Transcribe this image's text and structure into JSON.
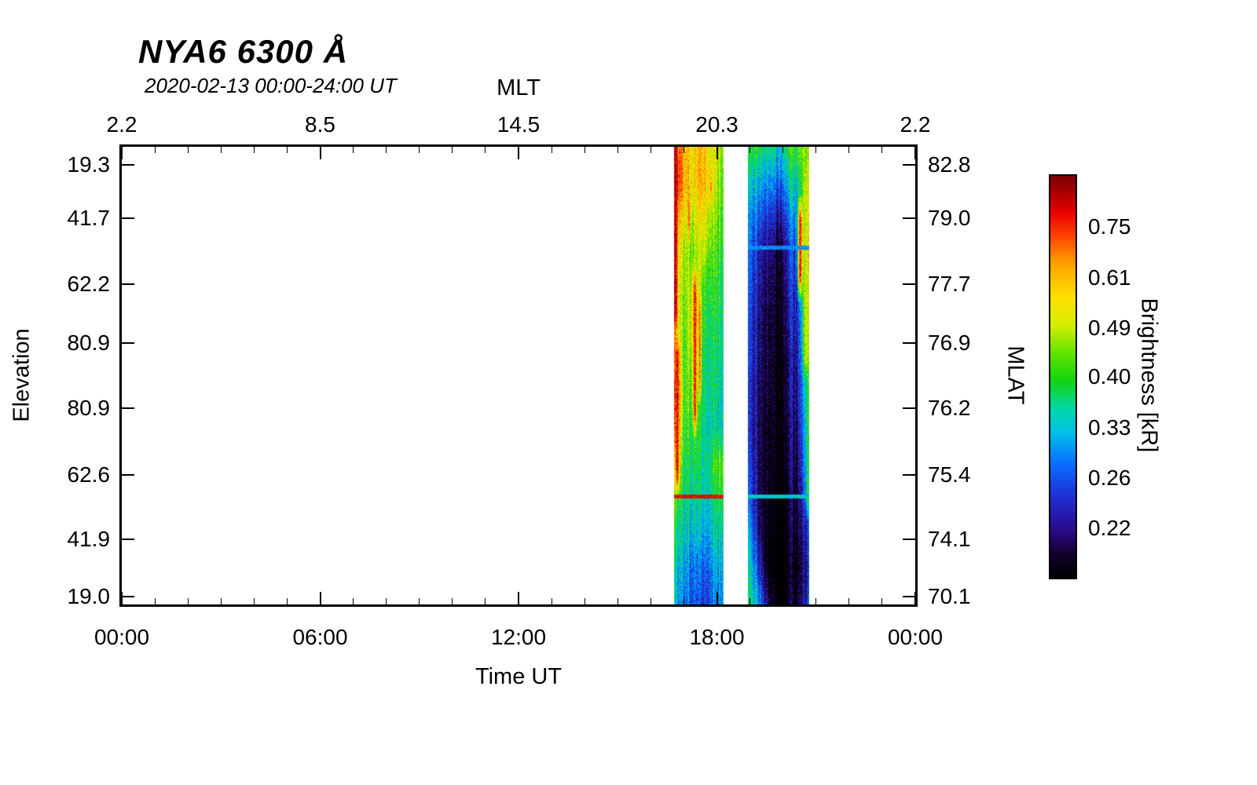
{
  "chart_data": {
    "type": "heatmap",
    "title": "NYA6 6300 Å",
    "subtitle": "2020-02-13 00:00-24:00 UT",
    "background": "#ffffff",
    "frame_color": "#000000",
    "time_range_hours": [
      0,
      24
    ],
    "axes": {
      "top": {
        "label": "MLT",
        "ticks": [
          {
            "label": "2.2",
            "pos": 0.0
          },
          {
            "label": "8.5",
            "pos": 0.25
          },
          {
            "label": "14.5",
            "pos": 0.5
          },
          {
            "label": "20.3",
            "pos": 0.75
          },
          {
            "label": "2.2",
            "pos": 1.0
          }
        ]
      },
      "bottom": {
        "label": "Time UT",
        "ticks": [
          {
            "label": "00:00",
            "pos": 0.0
          },
          {
            "label": "06:00",
            "pos": 0.25
          },
          {
            "label": "12:00",
            "pos": 0.5
          },
          {
            "label": "18:00",
            "pos": 0.75
          },
          {
            "label": "00:00",
            "pos": 1.0
          }
        ]
      },
      "left": {
        "label": "Elevation",
        "ticks": [
          {
            "label": "19.3",
            "pos": 0.04
          },
          {
            "label": "41.7",
            "pos": 0.156
          },
          {
            "label": "62.2",
            "pos": 0.3
          },
          {
            "label": "80.9",
            "pos": 0.429
          },
          {
            "label": "80.9",
            "pos": 0.571
          },
          {
            "label": "62.6",
            "pos": 0.717
          },
          {
            "label": "41.9",
            "pos": 0.858
          },
          {
            "label": "19.0",
            "pos": 0.983
          }
        ]
      },
      "right": {
        "label": "MLAT",
        "ticks": [
          {
            "label": "82.8",
            "pos": 0.04
          },
          {
            "label": "79.0",
            "pos": 0.156
          },
          {
            "label": "77.7",
            "pos": 0.3
          },
          {
            "label": "76.9",
            "pos": 0.429
          },
          {
            "label": "76.2",
            "pos": 0.571
          },
          {
            "label": "75.4",
            "pos": 0.717
          },
          {
            "label": "74.1",
            "pos": 0.858
          },
          {
            "label": "70.1",
            "pos": 0.983
          }
        ]
      }
    },
    "colorbar": {
      "label": "Brightness [kR]",
      "ticks": [
        {
          "label": "0.75",
          "pos": 0.13
        },
        {
          "label": "0.61",
          "pos": 0.256
        },
        {
          "label": "0.49",
          "pos": 0.38
        },
        {
          "label": "0.40",
          "pos": 0.5
        },
        {
          "label": "0.33",
          "pos": 0.626
        },
        {
          "label": "0.26",
          "pos": 0.75
        },
        {
          "label": "0.22",
          "pos": 0.874
        }
      ],
      "scale": {
        "kR_top": 0.928,
        "kR_black": 0.181,
        "log": true
      },
      "colormap": [
        {
          "v": 0.0,
          "c": "#000000"
        },
        {
          "v": 0.06,
          "c": "#14002e"
        },
        {
          "v": 0.12,
          "c": "#2b0b8e"
        },
        {
          "v": 0.2,
          "c": "#1f2fd4"
        },
        {
          "v": 0.28,
          "c": "#0a6bff"
        },
        {
          "v": 0.36,
          "c": "#00c0e8"
        },
        {
          "v": 0.42,
          "c": "#00d8a8"
        },
        {
          "v": 0.49,
          "c": "#12d412"
        },
        {
          "v": 0.56,
          "c": "#64e400"
        },
        {
          "v": 0.63,
          "c": "#d6ee00"
        },
        {
          "v": 0.7,
          "c": "#ffe000"
        },
        {
          "v": 0.78,
          "c": "#ffa400"
        },
        {
          "v": 0.85,
          "c": "#ff4400"
        },
        {
          "v": 0.91,
          "c": "#e80000"
        },
        {
          "v": 1.0,
          "c": "#7a0000"
        }
      ]
    },
    "bands": [
      {
        "name": "event-1",
        "t_start": 16.7,
        "t_end": 18.2,
        "hlines": [
          {
            "y": 0.765,
            "kR": 0.8
          }
        ],
        "streaks": [
          {
            "x": 0.02,
            "w": 0.05,
            "y0": 0.0,
            "y1": 0.4,
            "kR": 0.88
          },
          {
            "x": 0.06,
            "w": 0.04,
            "y0": 0.42,
            "y1": 0.75,
            "kR": 0.82
          },
          {
            "x": 0.3,
            "w": 0.03,
            "y0": 0.1,
            "y1": 0.2,
            "kR": 0.72
          },
          {
            "x": 0.42,
            "w": 0.035,
            "y0": 0.28,
            "y1": 0.62,
            "kR": 0.8
          },
          {
            "x": 0.52,
            "w": 0.025,
            "y0": 0.32,
            "y1": 0.55,
            "kR": 0.72
          },
          {
            "x": 0.75,
            "w": 0.03,
            "y0": 0.05,
            "y1": 0.12,
            "kR": 0.68
          }
        ],
        "grid_kR": [
          [
            0.8,
            0.58,
            0.55,
            0.6,
            0.52,
            0.46
          ],
          [
            0.85,
            0.6,
            0.55,
            0.62,
            0.5,
            0.44
          ],
          [
            0.66,
            0.52,
            0.48,
            0.56,
            0.46,
            0.42
          ],
          [
            0.58,
            0.47,
            0.45,
            0.5,
            0.42,
            0.4
          ],
          [
            0.55,
            0.44,
            0.52,
            0.42,
            0.4,
            0.38
          ],
          [
            0.58,
            0.42,
            0.56,
            0.4,
            0.38,
            0.37
          ],
          [
            0.66,
            0.41,
            0.5,
            0.38,
            0.37,
            0.36
          ],
          [
            0.72,
            0.42,
            0.44,
            0.37,
            0.36,
            0.34
          ],
          [
            0.66,
            0.4,
            0.4,
            0.36,
            0.35,
            0.34
          ],
          [
            0.52,
            0.38,
            0.38,
            0.35,
            0.4,
            0.44
          ],
          [
            0.44,
            0.36,
            0.35,
            0.34,
            0.36,
            0.4
          ],
          [
            0.38,
            0.33,
            0.32,
            0.31,
            0.33,
            0.35
          ],
          [
            0.35,
            0.3,
            0.28,
            0.27,
            0.3,
            0.32
          ],
          [
            0.33,
            0.28,
            0.26,
            0.25,
            0.28,
            0.3
          ]
        ]
      },
      {
        "name": "event-2",
        "t_start": 18.95,
        "t_end": 20.8,
        "hlines": [
          {
            "y": 0.22,
            "kR": 0.3
          },
          {
            "y": 0.765,
            "kR": 0.34
          }
        ],
        "streaks": [
          {
            "x": 0.86,
            "w": 0.035,
            "y0": 0.12,
            "y1": 0.32,
            "kR": 0.8
          },
          {
            "x": 0.96,
            "w": 0.05,
            "y0": 0.04,
            "y1": 0.5,
            "kR": 0.52
          },
          {
            "x": 0.99,
            "w": 0.04,
            "y0": 0.5,
            "y1": 0.8,
            "kR": 0.4
          }
        ],
        "grid_kR": [
          [
            0.4,
            0.38,
            0.36,
            0.35,
            0.38,
            0.44,
            0.5
          ],
          [
            0.34,
            0.31,
            0.29,
            0.29,
            0.31,
            0.38,
            0.48
          ],
          [
            0.3,
            0.26,
            0.24,
            0.23,
            0.26,
            0.33,
            0.52
          ],
          [
            0.28,
            0.23,
            0.21,
            0.2,
            0.23,
            0.29,
            0.56
          ],
          [
            0.27,
            0.22,
            0.2,
            0.19,
            0.22,
            0.27,
            0.5
          ],
          [
            0.26,
            0.21,
            0.19,
            0.19,
            0.21,
            0.26,
            0.44
          ],
          [
            0.26,
            0.21,
            0.19,
            0.18,
            0.2,
            0.25,
            0.4
          ],
          [
            0.25,
            0.2,
            0.19,
            0.18,
            0.2,
            0.24,
            0.38
          ],
          [
            0.25,
            0.2,
            0.18,
            0.18,
            0.19,
            0.23,
            0.36
          ],
          [
            0.26,
            0.2,
            0.18,
            0.18,
            0.19,
            0.22,
            0.33
          ],
          [
            0.28,
            0.2,
            0.18,
            0.17,
            0.18,
            0.21,
            0.3
          ],
          [
            0.32,
            0.21,
            0.17,
            0.17,
            0.18,
            0.2,
            0.26
          ],
          [
            0.36,
            0.24,
            0.17,
            0.16,
            0.17,
            0.19,
            0.24
          ],
          [
            0.38,
            0.3,
            0.2,
            0.17,
            0.18,
            0.2,
            0.26
          ]
        ]
      }
    ]
  }
}
